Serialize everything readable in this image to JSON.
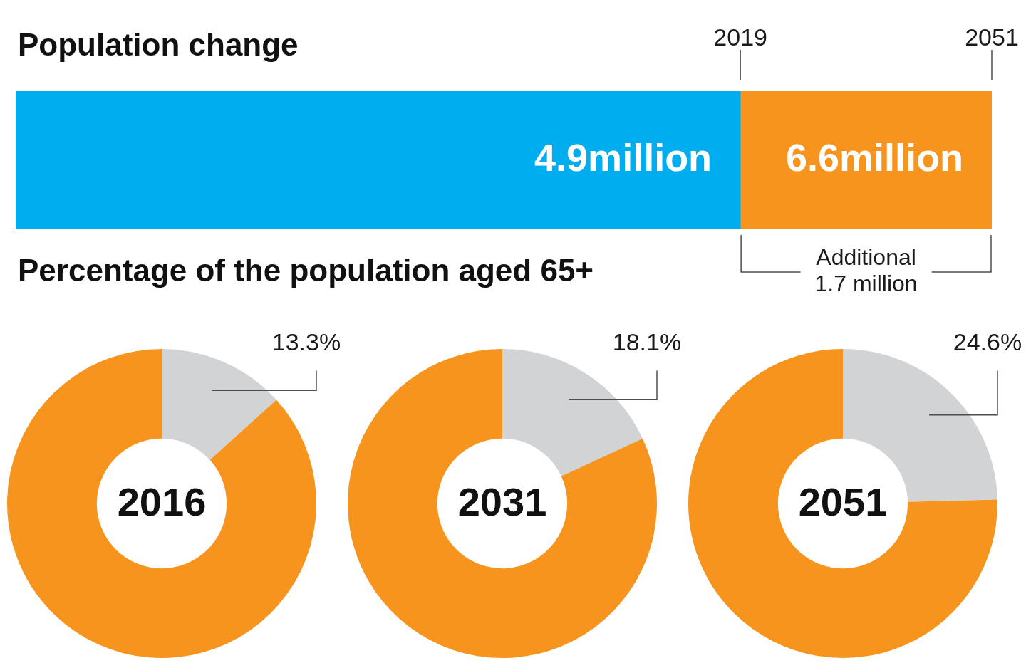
{
  "chart_data": [
    {
      "type": "bar",
      "title": "Population change",
      "orientation": "horizontal",
      "stacked": true,
      "categories": [
        null
      ],
      "series": [
        {
          "color": "#00aeef",
          "values": [
            4.9
          ],
          "value_labels": [
            "4.9million"
          ]
        },
        {
          "color": "#f7941d",
          "values": [
            1.7
          ]
        }
      ],
      "totals": [
        "6.6million"
      ],
      "xlim": [
        0,
        6.6
      ],
      "annotations": [
        {
          "text": "2019",
          "x": 4.9
        },
        {
          "text": "2051",
          "x": 6.6
        },
        "Additional 1.7 million"
      ]
    },
    {
      "type": "donut",
      "title": "Percentage of the population aged 65+",
      "categories": [
        null,
        null
      ],
      "colors": [
        "#d1d3d4",
        "#f7941d"
      ],
      "series": [
        {
          "name": "2016",
          "values": [
            13.3,
            86.7
          ],
          "value_labels": [
            "13.3%",
            null
          ]
        },
        {
          "name": "2031",
          "values": [
            18.1,
            81.9
          ],
          "value_labels": [
            "18.1%",
            null
          ]
        },
        {
          "name": "2051",
          "values": [
            24.6,
            75.4
          ],
          "value_labels": [
            "24.6%",
            null
          ]
        }
      ]
    }
  ]
}
